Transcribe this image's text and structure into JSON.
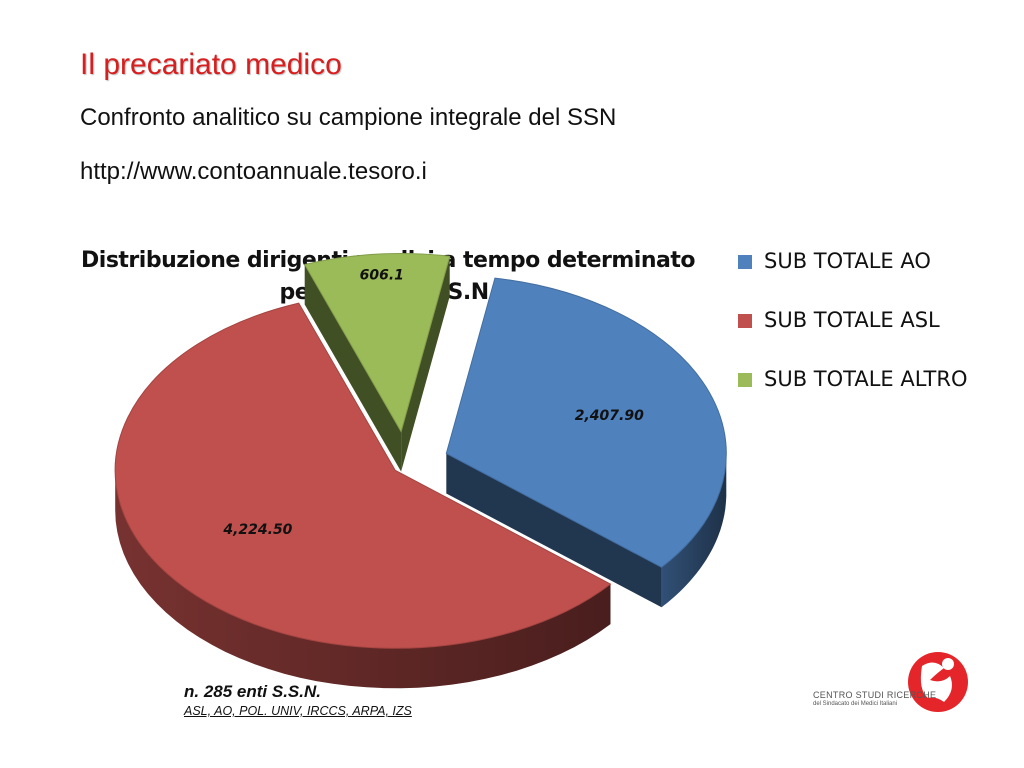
{
  "slide": {
    "title": "Il precariato medico",
    "subtitle": "Confronto analitico su campione integrale del SSN",
    "url": "http://www.contoannuale.tesoro.i"
  },
  "chart_data": {
    "type": "pie",
    "title": "Distribuzione dirigenti medici a tempo determinato per enti del S.S.N.",
    "title_lines": [
      "Distribuzione dirigenti medici a tempo determinato",
      "per enti del S.S.N."
    ],
    "categories": [
      "SUB TOTALE AO",
      "SUB TOTALE ASL",
      "SUB TOTALE ALTRO"
    ],
    "values": [
      2407.9,
      4224.5,
      606.1
    ],
    "data_labels": [
      "2,407.90",
      "4,224.50",
      "606.1"
    ],
    "colors": [
      "#4f81bd",
      "#c0504d",
      "#9bbb59"
    ],
    "legend_position": "right",
    "style": "3d-exploded"
  },
  "legend": {
    "items": [
      {
        "label": "SUB TOTALE AO",
        "color": "#4f81bd"
      },
      {
        "label": "SUB TOTALE ASL",
        "color": "#c0504d"
      },
      {
        "label": "SUB TOTALE ALTRO",
        "color": "#9bbb59"
      }
    ]
  },
  "note": {
    "main": "n. 285 enti S.S.N.",
    "sub": "ASL, AO, POL. UNIV, IRCCS, ARPA, IZS"
  },
  "logo": {
    "line1": "CENTRO STUDI RICERCHE",
    "line2": "del Sindacato dei Medici Italiani",
    "color": "#e4262a"
  }
}
